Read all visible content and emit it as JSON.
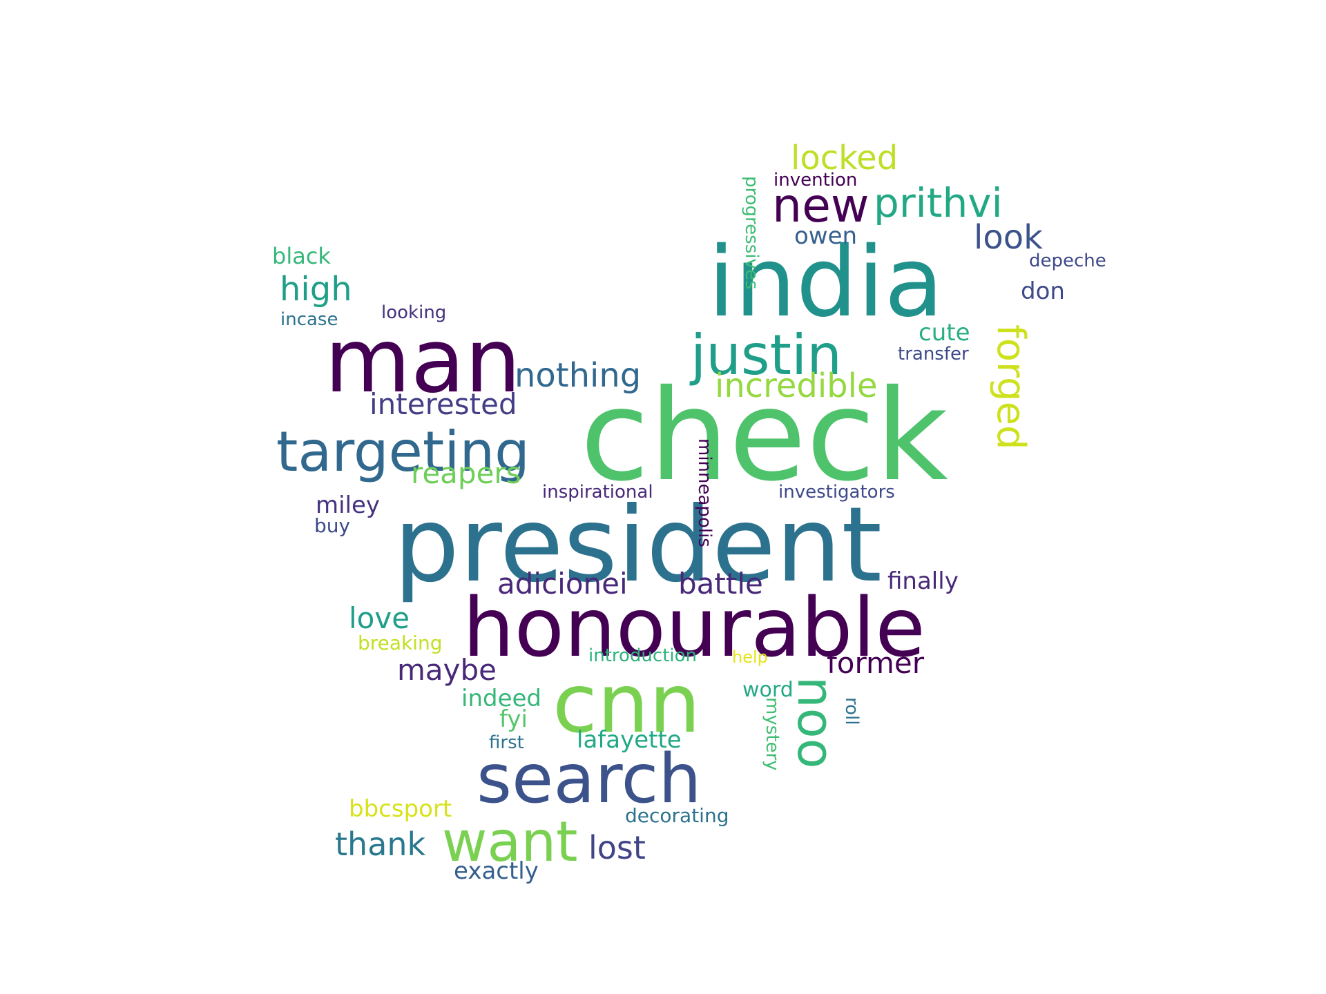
{
  "words": [
    {
      "text": "check",
      "color": "#4ec36b",
      "orientation": "horizontal"
    },
    {
      "text": "president",
      "color": "#2c728e",
      "orientation": "horizontal"
    },
    {
      "text": "india",
      "color": "#21918c",
      "orientation": "horizontal"
    },
    {
      "text": "man",
      "color": "#440154",
      "orientation": "horizontal"
    },
    {
      "text": "honourable",
      "color": "#440154",
      "orientation": "horizontal"
    },
    {
      "text": "cnn",
      "color": "#7ad151",
      "orientation": "horizontal"
    },
    {
      "text": "search",
      "color": "#3b528b",
      "orientation": "horizontal"
    },
    {
      "text": "targeting",
      "color": "#31688e",
      "orientation": "horizontal"
    },
    {
      "text": "justin",
      "color": "#1f9e89",
      "orientation": "horizontal"
    },
    {
      "text": "want",
      "color": "#7ad151",
      "orientation": "horizontal"
    },
    {
      "text": "noo",
      "color": "#35b779",
      "orientation": "vertical"
    },
    {
      "text": "new",
      "color": "#440154",
      "orientation": "horizontal"
    },
    {
      "text": "prithvi",
      "color": "#22a884",
      "orientation": "horizontal"
    },
    {
      "text": "forged",
      "color": "#cde11d",
      "orientation": "vertical"
    },
    {
      "text": "nothing",
      "color": "#31688e",
      "orientation": "horizontal"
    },
    {
      "text": "incredible",
      "color": "#95d840",
      "orientation": "horizontal"
    },
    {
      "text": "locked",
      "color": "#bddf26",
      "orientation": "horizontal"
    },
    {
      "text": "look",
      "color": "#3b528b",
      "orientation": "horizontal"
    },
    {
      "text": "high",
      "color": "#1f9e89",
      "orientation": "horizontal"
    },
    {
      "text": "interested",
      "color": "#433e85",
      "orientation": "horizontal"
    },
    {
      "text": "reapers",
      "color": "#6ece58",
      "orientation": "horizontal"
    },
    {
      "text": "adicionei",
      "color": "#482878",
      "orientation": "horizontal"
    },
    {
      "text": "battle",
      "color": "#482878",
      "orientation": "horizontal"
    },
    {
      "text": "love",
      "color": "#1f9e89",
      "orientation": "horizontal"
    },
    {
      "text": "maybe",
      "color": "#482878",
      "orientation": "horizontal"
    },
    {
      "text": "former",
      "color": "#440154",
      "orientation": "horizontal"
    },
    {
      "text": "thank",
      "color": "#2a788e",
      "orientation": "horizontal"
    },
    {
      "text": "lost",
      "color": "#414487",
      "orientation": "horizontal"
    },
    {
      "text": "lafayette",
      "color": "#22a884",
      "orientation": "horizontal"
    },
    {
      "text": "bbcsport",
      "color": "#d8e219",
      "orientation": "horizontal"
    },
    {
      "text": "exactly",
      "color": "#355f8d",
      "orientation": "horizontal"
    },
    {
      "text": "indeed",
      "color": "#35b779",
      "orientation": "horizontal"
    },
    {
      "text": "fyi",
      "color": "#54c568",
      "orientation": "horizontal"
    },
    {
      "text": "miley",
      "color": "#46327e",
      "orientation": "horizontal"
    },
    {
      "text": "cute",
      "color": "#29af7f",
      "orientation": "horizontal"
    },
    {
      "text": "don",
      "color": "#3e4989",
      "orientation": "horizontal"
    },
    {
      "text": "owen",
      "color": "#355f8d",
      "orientation": "horizontal"
    },
    {
      "text": "finally",
      "color": "#482878",
      "orientation": "horizontal"
    },
    {
      "text": "black",
      "color": "#35b779",
      "orientation": "horizontal"
    },
    {
      "text": "incase",
      "color": "#2c728e",
      "orientation": "horizontal"
    },
    {
      "text": "looking",
      "color": "#46327e",
      "orientation": "horizontal"
    },
    {
      "text": "invention",
      "color": "#440154",
      "orientation": "horizontal"
    },
    {
      "text": "progressives",
      "color": "#3dbc74",
      "orientation": "vertical"
    },
    {
      "text": "depeche",
      "color": "#3e4989",
      "orientation": "horizontal"
    },
    {
      "text": "transfer",
      "color": "#3e4989",
      "orientation": "horizontal"
    },
    {
      "text": "inspirational",
      "color": "#482878",
      "orientation": "horizontal"
    },
    {
      "text": "minneapolis",
      "color": "#440154",
      "orientation": "vertical"
    },
    {
      "text": "investigators",
      "color": "#3e4989",
      "orientation": "horizontal"
    },
    {
      "text": "buy",
      "color": "#3e4989",
      "orientation": "horizontal"
    },
    {
      "text": "breaking",
      "color": "#c2df23",
      "orientation": "horizontal"
    },
    {
      "text": "introduction",
      "color": "#2db27d",
      "orientation": "horizontal"
    },
    {
      "text": "help",
      "color": "#e5e419",
      "orientation": "horizontal"
    },
    {
      "text": "word",
      "color": "#22a884",
      "orientation": "horizontal"
    },
    {
      "text": "mystery",
      "color": "#40bd72",
      "orientation": "vertical"
    },
    {
      "text": "roll",
      "color": "#2c728e",
      "orientation": "vertical"
    },
    {
      "text": "first",
      "color": "#2c728e",
      "orientation": "horizontal"
    },
    {
      "text": "decorating",
      "color": "#2c728e",
      "orientation": "horizontal"
    }
  ]
}
